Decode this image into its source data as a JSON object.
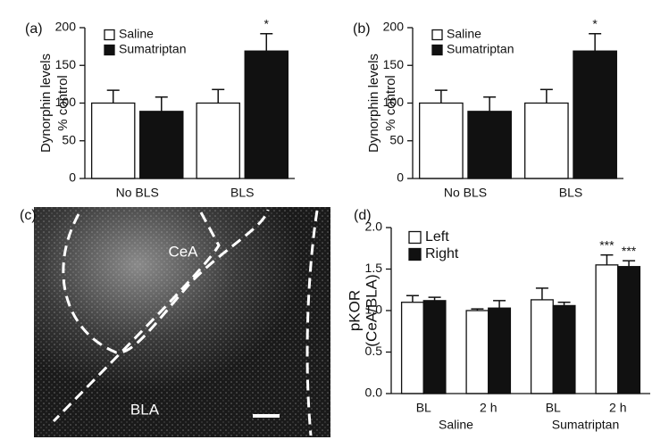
{
  "chart_data": [
    {
      "type": "bar",
      "panel_label": "(a)",
      "ylabel": [
        "Dynorphin levels",
        "% control"
      ],
      "categories": [
        "No BLS",
        "BLS"
      ],
      "series": [
        {
          "name": "Saline",
          "color": "#ffffff",
          "values": [
            100,
            100
          ],
          "errors": [
            17,
            18
          ],
          "sig": [
            null,
            null
          ]
        },
        {
          "name": "Sumatriptan",
          "color": "#111111",
          "values": [
            89,
            169
          ],
          "errors": [
            19,
            23
          ],
          "sig": [
            null,
            "*"
          ]
        }
      ],
      "ylim": [
        0,
        200
      ],
      "yticks": [
        0,
        50,
        100,
        150,
        200
      ]
    },
    {
      "type": "bar",
      "panel_label": "(b)",
      "ylabel": [
        "Dynorphin levels",
        "% control"
      ],
      "categories": [
        "No BLS",
        "BLS"
      ],
      "series": [
        {
          "name": "Saline",
          "color": "#ffffff",
          "values": [
            100,
            100
          ],
          "errors": [
            17,
            18
          ],
          "sig": [
            null,
            null
          ]
        },
        {
          "name": "Sumatriptan",
          "color": "#111111",
          "values": [
            89,
            169
          ],
          "errors": [
            19,
            23
          ],
          "sig": [
            null,
            "*"
          ]
        }
      ],
      "ylim": [
        0,
        200
      ],
      "yticks": [
        0,
        50,
        100,
        150,
        200
      ]
    },
    {
      "type": "image",
      "panel_label": "(c)",
      "annotations": [
        "CeA",
        "BLA"
      ]
    },
    {
      "type": "bar",
      "panel_label": "(d)",
      "ylabel": [
        "pKOR",
        "(CeA/BLA)"
      ],
      "categories": [
        "BL",
        "2 h",
        "BL",
        "2 h"
      ],
      "groups": [
        "Saline",
        "Sumatriptan"
      ],
      "series": [
        {
          "name": "Left",
          "color": "#ffffff",
          "values": [
            1.1,
            1.0,
            1.13,
            1.55
          ],
          "errors": [
            0.08,
            0.02,
            0.14,
            0.12
          ],
          "sig": [
            null,
            null,
            null,
            "***"
          ]
        },
        {
          "name": "Right",
          "color": "#111111",
          "values": [
            1.12,
            1.03,
            1.06,
            1.53
          ],
          "errors": [
            0.04,
            0.09,
            0.04,
            0.07
          ],
          "sig": [
            null,
            null,
            null,
            "***"
          ]
        }
      ],
      "ylim": [
        0,
        2
      ],
      "yticks": [
        {
          "value": 0,
          "label": "0.0"
        },
        0.5,
        {
          "value": 1,
          "label": "1.0"
        },
        1.5,
        {
          "value": 2,
          "label": "2.0"
        }
      ]
    }
  ]
}
